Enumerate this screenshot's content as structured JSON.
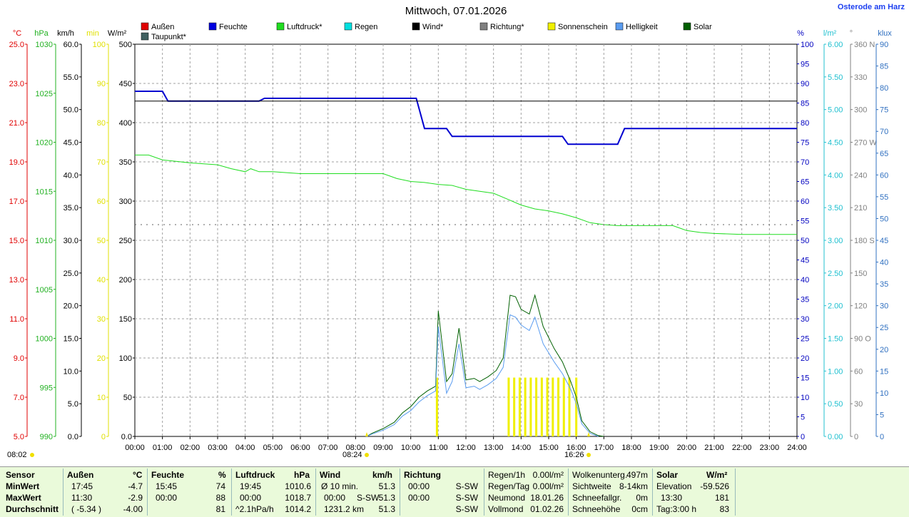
{
  "station": "Osterode am Harz",
  "chart_data": {
    "type": "line",
    "title": "Mittwoch, 07.01.2026",
    "x_ticks": [
      "00:00",
      "01:00",
      "02:00",
      "03:00",
      "04:00",
      "05:00",
      "06:00",
      "07:00",
      "08:00",
      "09:00",
      "10:00",
      "11:00",
      "12:00",
      "13:00",
      "14:00",
      "15:00",
      "16:00",
      "17:00",
      "18:00",
      "19:00",
      "20:00",
      "21:00",
      "22:00",
      "23:00",
      "24:00"
    ],
    "sunrise": "08:02",
    "sunset_label": "16:26",
    "sunrise_label": "08:24",
    "legend": [
      {
        "name": "Außen",
        "color": "#e00000"
      },
      {
        "name": "Feuchte",
        "color": "#0000e0"
      },
      {
        "name": "Luftdruck*",
        "color": "#20dd20"
      },
      {
        "name": "Regen",
        "color": "#00e0e0"
      },
      {
        "name": "Wind*",
        "color": "#000000"
      },
      {
        "name": "Richtung*",
        "color": "#808080"
      },
      {
        "name": "Sonnenschein",
        "color": "#f0f000"
      },
      {
        "name": "Helligkeit",
        "color": "#5a9cf0"
      },
      {
        "name": "Solar",
        "color": "#006000"
      },
      {
        "name": "Taupunkt*",
        "color": "#406060"
      }
    ],
    "axes": {
      "temp": {
        "unit": "°C",
        "color": "#e00000",
        "ticks": [
          "25.0",
          "23.0",
          "21.0",
          "19.0",
          "17.0",
          "15.0",
          "13.0",
          "11.0",
          "9.0",
          "7.0",
          "5.0"
        ],
        "range": [
          5,
          25
        ]
      },
      "pressure": {
        "unit": "hPa",
        "color": "#20b020",
        "ticks": [
          "1030",
          "1025",
          "1020",
          "1015",
          "1010",
          "1005",
          "1000",
          "995",
          "990"
        ],
        "range": [
          990,
          1030
        ]
      },
      "wind": {
        "unit": "km/h",
        "color": "#000000",
        "ticks": [
          "60.0",
          "55.0",
          "50.0",
          "45.0",
          "40.0",
          "35.0",
          "30.0",
          "25.0",
          "20.0",
          "15.0",
          "10.0",
          "5.0",
          "0.0"
        ],
        "range": [
          0,
          60
        ]
      },
      "sunmin": {
        "unit": "min",
        "color": "#e0e000",
        "ticks": [
          "100",
          "90",
          "80",
          "70",
          "60",
          "50",
          "40",
          "30",
          "20",
          "10",
          "0"
        ],
        "range": [
          0,
          100
        ]
      },
      "solar": {
        "unit": "W/m²",
        "color": "#000000",
        "ticks": [
          "500",
          "450",
          "400",
          "350",
          "300",
          "250",
          "200",
          "150",
          "100",
          "50",
          "0.0"
        ],
        "range": [
          0,
          500
        ]
      },
      "humidity": {
        "unit": "%",
        "color": "#0000c0",
        "ticks": [
          "100",
          "95",
          "90",
          "85",
          "80",
          "75",
          "70",
          "65",
          "60",
          "55",
          "50",
          "45",
          "40",
          "35",
          "30",
          "25",
          "20",
          "15",
          "10",
          "5",
          "0"
        ],
        "range": [
          0,
          100
        ]
      },
      "rain": {
        "unit": "l/m²",
        "color": "#20c0d0",
        "ticks": [
          "6.00",
          "5.50",
          "5.00",
          "4.50",
          "4.00",
          "3.50",
          "3.00",
          "2.50",
          "2.00",
          "1.50",
          "1.00",
          "0.50",
          "0.00"
        ],
        "range": [
          0,
          6
        ]
      },
      "direction": {
        "unit": "°",
        "color": "#808080",
        "ticks": [
          "360 N",
          "330",
          "300",
          "270 W",
          "240",
          "210",
          "180 S",
          "150",
          "120",
          "90 O",
          "60",
          "30",
          "0"
        ],
        "range": [
          0,
          360
        ]
      },
      "lux": {
        "unit": "klux",
        "color": "#3070c0",
        "ticks": [
          "90",
          "85",
          "80",
          "75",
          "70",
          "65",
          "60",
          "55",
          "50",
          "45",
          "40",
          "35",
          "30",
          "25",
          "20",
          "15",
          "10",
          "5",
          "0"
        ],
        "range": [
          0,
          90
        ]
      }
    },
    "series": [
      {
        "name": "Feuchte",
        "axis": "humidity",
        "color": "#0000d0",
        "points": [
          [
            0,
            88
          ],
          [
            1,
            88
          ],
          [
            1.2,
            85.5
          ],
          [
            4.5,
            85.5
          ],
          [
            4.7,
            86.2
          ],
          [
            10.2,
            86.2
          ],
          [
            10.5,
            78.5
          ],
          [
            11.3,
            78.5
          ],
          [
            11.5,
            76.5
          ],
          [
            15.5,
            76.5
          ],
          [
            15.7,
            74.5
          ],
          [
            17.5,
            74.5
          ],
          [
            17.75,
            78.5
          ],
          [
            24,
            78.5
          ]
        ]
      },
      {
        "name": "Luftdruck*",
        "axis": "pressure",
        "color": "#20dd20",
        "points": [
          [
            0,
            1018.7
          ],
          [
            0.5,
            1018.7
          ],
          [
            1,
            1018.2
          ],
          [
            2,
            1017.9
          ],
          [
            3,
            1017.7
          ],
          [
            3.5,
            1017.3
          ],
          [
            4,
            1017
          ],
          [
            4.2,
            1017.3
          ],
          [
            4.5,
            1017
          ],
          [
            5,
            1017
          ],
          [
            6,
            1016.8
          ],
          [
            7,
            1016.8
          ],
          [
            8,
            1016.8
          ],
          [
            9,
            1016.8
          ],
          [
            9.5,
            1016.3
          ],
          [
            10,
            1016.0
          ],
          [
            10.5,
            1015.9
          ],
          [
            11,
            1015.7
          ],
          [
            11.5,
            1015.6
          ],
          [
            12,
            1015.2
          ],
          [
            12.5,
            1015.0
          ],
          [
            13,
            1014.8
          ],
          [
            13.5,
            1014.2
          ],
          [
            14,
            1013.6
          ],
          [
            14.5,
            1013.2
          ],
          [
            15,
            1013.0
          ],
          [
            15.5,
            1012.7
          ],
          [
            16,
            1012.3
          ],
          [
            16.5,
            1011.8
          ],
          [
            17,
            1011.6
          ],
          [
            17.5,
            1011.5
          ],
          [
            18,
            1011.5
          ],
          [
            18.5,
            1011.5
          ],
          [
            19,
            1011.5
          ],
          [
            19.5,
            1011.5
          ],
          [
            19.8,
            1011.2
          ],
          [
            20,
            1011.0
          ],
          [
            20.5,
            1010.8
          ],
          [
            21,
            1010.7
          ],
          [
            22,
            1010.6
          ],
          [
            23,
            1010.6
          ],
          [
            24,
            1010.6
          ]
        ]
      },
      {
        "name": "Wind*",
        "axis": "humidity",
        "color": "#000000",
        "points": [
          [
            0,
            85.5
          ],
          [
            24,
            85.5
          ]
        ]
      },
      {
        "name": "Richtung*",
        "axis": "humidity",
        "color": "#606060",
        "style": "dotted",
        "points": [
          [
            0,
            54
          ],
          [
            24,
            54
          ]
        ]
      },
      {
        "name": "Solar",
        "axis": "solar",
        "color": "#006000",
        "points": [
          [
            8.4,
            0
          ],
          [
            8.6,
            4
          ],
          [
            9,
            10
          ],
          [
            9.4,
            18
          ],
          [
            9.7,
            30
          ],
          [
            10,
            38
          ],
          [
            10.3,
            50
          ],
          [
            10.6,
            58
          ],
          [
            10.9,
            64
          ],
          [
            11,
            160
          ],
          [
            11.3,
            70
          ],
          [
            11.5,
            80
          ],
          [
            11.75,
            138
          ],
          [
            12,
            72
          ],
          [
            12.3,
            74
          ],
          [
            12.5,
            70
          ],
          [
            12.8,
            76
          ],
          [
            13.1,
            84
          ],
          [
            13.35,
            100
          ],
          [
            13.6,
            180
          ],
          [
            13.8,
            178
          ],
          [
            14,
            162
          ],
          [
            14.3,
            156
          ],
          [
            14.5,
            180
          ],
          [
            14.8,
            140
          ],
          [
            15.2,
            112
          ],
          [
            15.5,
            95
          ],
          [
            15.8,
            70
          ],
          [
            16,
            50
          ],
          [
            16.2,
            20
          ],
          [
            16.5,
            6
          ],
          [
            16.8,
            1
          ],
          [
            17,
            0
          ]
        ]
      },
      {
        "name": "Helligkeit",
        "axis": "solar",
        "color": "#5a9cf0",
        "points": [
          [
            8.4,
            0
          ],
          [
            8.6,
            3
          ],
          [
            9,
            8
          ],
          [
            9.4,
            15
          ],
          [
            9.7,
            26
          ],
          [
            10,
            33
          ],
          [
            10.3,
            44
          ],
          [
            10.6,
            52
          ],
          [
            10.9,
            58
          ],
          [
            11,
            140
          ],
          [
            11.3,
            55
          ],
          [
            11.5,
            70
          ],
          [
            11.75,
            118
          ],
          [
            12,
            62
          ],
          [
            12.3,
            64
          ],
          [
            12.5,
            60
          ],
          [
            12.8,
            66
          ],
          [
            13.1,
            74
          ],
          [
            13.35,
            88
          ],
          [
            13.6,
            155
          ],
          [
            13.8,
            152
          ],
          [
            14,
            142
          ],
          [
            14.3,
            135
          ],
          [
            14.5,
            152
          ],
          [
            14.8,
            118
          ],
          [
            15.2,
            95
          ],
          [
            15.5,
            80
          ],
          [
            15.8,
            60
          ],
          [
            16,
            42
          ],
          [
            16.2,
            16
          ],
          [
            16.5,
            4
          ],
          [
            16.8,
            0
          ]
        ]
      }
    ],
    "sunshine_bars": {
      "axis": "sunmin",
      "color": "#f0f000",
      "x": [
        10.95,
        13.55,
        13.75,
        13.95,
        14.15,
        14.35,
        14.55,
        14.75,
        14.95,
        15.15,
        15.35,
        15.55,
        15.75,
        16.0
      ],
      "y": 15
    }
  },
  "table": {
    "col1": {
      "headers": [
        "Sensor",
        "Außen",
        "°C",
        "Feuchte",
        "%",
        "Luftdruck",
        "hPa",
        "Wind",
        "km/h",
        "Richtung"
      ],
      "rows": [
        {
          "label": "MinWert",
          "a_time": "17:45",
          "a_val": "-4.7",
          "h_time": "15:45",
          "h_val": "74",
          "p_time": "19:45",
          "p_val": "1010.6",
          "w_time": "Ø 10 min.",
          "w_val": "51.3",
          "d_time": "00:00",
          "d_val": "S-SW"
        },
        {
          "label": "MaxWert",
          "a_time": "11:30",
          "a_val": "-2.9",
          "h_time": "00:00",
          "h_val": "88",
          "p_time": "00:00",
          "p_val": "1018.7",
          "w_time": "00:00",
          "w_dir": "S-SW",
          "w_val": "51.3",
          "d_time": "00:00",
          "d_val": "S-SW"
        },
        {
          "label": "Durchschnitt",
          "a_time": "( -5.34 )",
          "a_val": "-4.00",
          "h_time": "",
          "h_val": "81",
          "p_time": "^2.1hPa/h",
          "p_val": "1014.2",
          "w_time": "1231.2 km",
          "w_val": "51.3",
          "d_time": "",
          "d_val": "S-SW"
        }
      ]
    },
    "rain": [
      {
        "label": "Regen/1h",
        "val": "0.00l/m²"
      },
      {
        "label": "Regen/Tag",
        "val": "0.00l/m²"
      },
      {
        "label": "Neumond",
        "val": "18.01.26"
      },
      {
        "label": "Vollmond",
        "val": "01.02.26"
      }
    ],
    "cloud": [
      {
        "label": "Wolkenunterg.",
        "val": "497m"
      },
      {
        "label": "Sichtweite",
        "val": "8-14km"
      },
      {
        "label": "Schneefallgr.",
        "val": "0m"
      },
      {
        "label": "Schneehöhe",
        "val": "0cm"
      }
    ],
    "solar": {
      "header": "Solar",
      "unit": "W/m²",
      "rows": [
        {
          "label": "Elevation",
          "val": "-59.526"
        },
        {
          "label": "13:30",
          "val": "181"
        },
        {
          "label": "Tag:3:00 h",
          "val": "83"
        }
      ]
    }
  }
}
